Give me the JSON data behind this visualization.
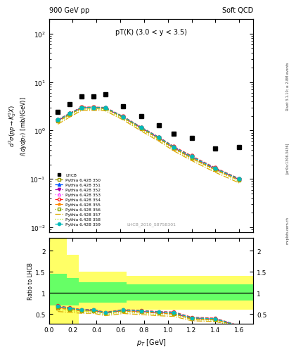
{
  "title_left": "900 GeV pp",
  "title_right": "Soft QCD",
  "annotation": "pT(K) (3.0 < y < 3.5)",
  "watermark": "LHCB_2010_S8758301",
  "right_label": "Rivet 3.1.10; ≥ 2.8M events",
  "arxiv_label": "[arXiv:1306.3436]",
  "mcplots_label": "mcplots.cern.ch",
  "ylabel_ratio": "Ratio to LHCB",
  "xlim": [
    0.0,
    1.72
  ],
  "ylim_main": [
    0.008,
    200
  ],
  "ylim_ratio": [
    0.28,
    2.3
  ],
  "lhcb_x": [
    0.075,
    0.175,
    0.275,
    0.375,
    0.475,
    0.625,
    0.775,
    0.925,
    1.05,
    1.2,
    1.4,
    1.6
  ],
  "lhcb_y": [
    2.4,
    3.5,
    5.0,
    5.0,
    5.5,
    3.2,
    2.0,
    1.3,
    0.85,
    0.7,
    0.42,
    0.45
  ],
  "pt_x": [
    0.075,
    0.175,
    0.275,
    0.375,
    0.475,
    0.625,
    0.775,
    0.925,
    1.05,
    1.2,
    1.4,
    1.6
  ],
  "series": [
    {
      "label": "Pythia 6.428 350",
      "color": "#999900",
      "linestyle": "--",
      "marker": "s",
      "markerfill": "none",
      "y": [
        1.55,
        2.15,
        2.9,
        2.9,
        2.85,
        1.85,
        1.1,
        0.68,
        0.43,
        0.27,
        0.155,
        0.095
      ]
    },
    {
      "label": "Pythia 6.428 351",
      "color": "#0055ff",
      "linestyle": "--",
      "marker": "^",
      "markerfill": "#0055ff",
      "y": [
        1.65,
        2.25,
        3.0,
        3.0,
        2.95,
        1.92,
        1.16,
        0.72,
        0.46,
        0.29,
        0.165,
        0.1
      ]
    },
    {
      "label": "Pythia 6.428 352",
      "color": "#aa00aa",
      "linestyle": "-.",
      "marker": "v",
      "markerfill": "#aa00aa",
      "y": [
        1.6,
        2.2,
        2.95,
        2.95,
        2.9,
        1.88,
        1.13,
        0.7,
        0.44,
        0.28,
        0.16,
        0.098
      ]
    },
    {
      "label": "Pythia 6.428 353",
      "color": "#ff55ff",
      "linestyle": ":",
      "marker": "^",
      "markerfill": "none",
      "y": [
        1.65,
        2.25,
        3.0,
        3.0,
        2.95,
        1.92,
        1.16,
        0.72,
        0.46,
        0.29,
        0.165,
        0.1
      ]
    },
    {
      "label": "Pythia 6.428 354",
      "color": "#ff2222",
      "linestyle": "--",
      "marker": "o",
      "markerfill": "none",
      "y": [
        1.68,
        2.28,
        3.05,
        3.05,
        3.0,
        1.95,
        1.18,
        0.73,
        0.47,
        0.3,
        0.17,
        0.102
      ]
    },
    {
      "label": "Pythia 6.428 355",
      "color": "#ff8800",
      "linestyle": "--",
      "marker": "*",
      "markerfill": "#ff8800",
      "y": [
        1.55,
        2.15,
        2.9,
        2.9,
        2.85,
        1.85,
        1.1,
        0.68,
        0.43,
        0.27,
        0.155,
        0.095
      ]
    },
    {
      "label": "Pythia 6.428 356",
      "color": "#88aa00",
      "linestyle": ":",
      "marker": "s",
      "markerfill": "none",
      "y": [
        1.6,
        2.2,
        2.95,
        2.95,
        2.9,
        1.88,
        1.13,
        0.7,
        0.44,
        0.28,
        0.16,
        0.098
      ]
    },
    {
      "label": "Pythia 6.428 357",
      "color": "#ddaa00",
      "linestyle": "-.",
      "marker": null,
      "markerfill": "none",
      "y": [
        1.35,
        1.9,
        2.6,
        2.6,
        2.55,
        1.65,
        0.98,
        0.6,
        0.38,
        0.24,
        0.137,
        0.083
      ]
    },
    {
      "label": "Pythia 6.428 358",
      "color": "#aadd00",
      "linestyle": ":",
      "marker": null,
      "markerfill": "none",
      "y": [
        1.45,
        2.05,
        2.75,
        2.75,
        2.7,
        1.75,
        1.04,
        0.64,
        0.41,
        0.26,
        0.148,
        0.09
      ]
    },
    {
      "label": "Pythia 6.428 359",
      "color": "#00bbbb",
      "linestyle": "--",
      "marker": "o",
      "markerfill": "#00bbbb",
      "y": [
        1.65,
        2.25,
        3.0,
        3.0,
        2.95,
        1.92,
        1.16,
        0.72,
        0.46,
        0.29,
        0.165,
        0.1
      ]
    }
  ],
  "band_x": [
    0.0,
    0.15,
    0.25,
    0.55,
    0.65,
    1.72
  ],
  "yellow_lo": [
    0.28,
    0.28,
    0.55,
    0.55,
    0.6,
    0.6
  ],
  "yellow_hi": [
    2.3,
    1.9,
    1.5,
    1.5,
    1.4,
    1.4
  ],
  "green_lo": [
    0.7,
    0.7,
    0.78,
    0.78,
    0.82,
    0.82
  ],
  "green_hi": [
    1.45,
    1.35,
    1.25,
    1.25,
    1.2,
    1.2
  ],
  "yellow_color": "#ffff66",
  "green_color": "#66ff66",
  "bg_color": "#ffffff"
}
